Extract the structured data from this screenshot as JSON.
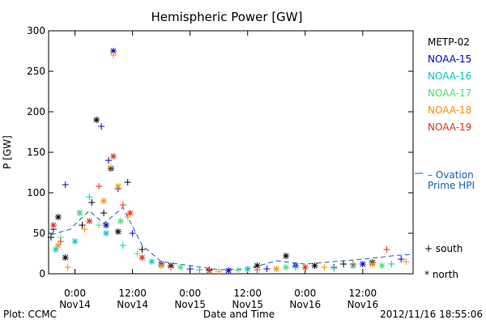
{
  "chart_data": {
    "type": "scatter",
    "title": "Hemispheric Power [GW]",
    "xlabel": "Date and Time",
    "ylabel": "P [GW]",
    "ylim": [
      0,
      300
    ],
    "xlim": [
      "2012-11-13T18:30",
      "2012-11-16T22:30"
    ],
    "yticks": [
      0,
      50,
      100,
      150,
      200,
      250,
      300
    ],
    "xticks": [
      {
        "t": "2012-11-14T00:00",
        "time": "0:00",
        "day": "Nov14"
      },
      {
        "t": "2012-11-14T12:00",
        "time": "12:00",
        "day": "Nov14"
      },
      {
        "t": "2012-11-15T00:00",
        "time": "0:00",
        "day": "Nov15"
      },
      {
        "t": "2012-11-15T12:00",
        "time": "12:00",
        "day": "Nov15"
      },
      {
        "t": "2012-11-16T00:00",
        "time": "0:00",
        "day": "Nov16"
      },
      {
        "t": "2012-11-16T12:00",
        "time": "12:00",
        "day": "Nov16"
      }
    ],
    "grid": false,
    "legend_position": "right",
    "series": [
      {
        "name": "METP-02",
        "color": "#000000",
        "values": [
          [
            "2012-11-13T19:00",
            45,
            "+"
          ],
          [
            "2012-11-13T20:30",
            70,
            "*"
          ],
          [
            "2012-11-13T22:00",
            20,
            "*"
          ],
          [
            "2012-11-14T01:30",
            60,
            "+"
          ],
          [
            "2012-11-14T03:30",
            88,
            "+"
          ],
          [
            "2012-11-14T04:30",
            190,
            "*"
          ],
          [
            "2012-11-14T06:00",
            75,
            "+"
          ],
          [
            "2012-11-14T07:30",
            130,
            "*"
          ],
          [
            "2012-11-14T09:00",
            52,
            "*"
          ],
          [
            "2012-11-14T11:00",
            113,
            "+"
          ],
          [
            "2012-11-14T14:00",
            30,
            "+"
          ],
          [
            "2012-11-14T20:00",
            10,
            "*"
          ],
          [
            "2012-11-15T04:00",
            5,
            "+"
          ],
          [
            "2012-11-15T14:00",
            10,
            "*"
          ],
          [
            "2012-11-15T20:00",
            22,
            "*"
          ],
          [
            "2012-11-16T02:00",
            10,
            "*"
          ],
          [
            "2012-11-16T08:00",
            12,
            "+"
          ],
          [
            "2012-11-16T14:00",
            14,
            "*"
          ]
        ]
      },
      {
        "name": "NOAA-15",
        "color": "#0000cc",
        "values": [
          [
            "2012-11-13T19:30",
            55,
            "+"
          ],
          [
            "2012-11-13T22:00",
            110,
            "+"
          ],
          [
            "2012-11-14T01:00",
            75,
            "*"
          ],
          [
            "2012-11-14T05:30",
            182,
            "+"
          ],
          [
            "2012-11-14T06:30",
            60,
            "*"
          ],
          [
            "2012-11-14T07:00",
            140,
            "+"
          ],
          [
            "2012-11-14T08:00",
            275,
            "*"
          ],
          [
            "2012-11-14T09:00",
            105,
            "+"
          ],
          [
            "2012-11-14T12:00",
            50,
            "+"
          ],
          [
            "2012-11-14T18:00",
            12,
            "*"
          ],
          [
            "2012-11-15T00:00",
            6,
            "+"
          ],
          [
            "2012-11-15T08:00",
            4,
            "*"
          ],
          [
            "2012-11-15T16:00",
            6,
            "+"
          ],
          [
            "2012-11-15T22:00",
            10,
            "*"
          ],
          [
            "2012-11-16T06:00",
            8,
            "+"
          ],
          [
            "2012-11-16T12:00",
            12,
            "*"
          ],
          [
            "2012-11-16T20:00",
            18,
            "+"
          ]
        ]
      },
      {
        "name": "NOAA-16",
        "color": "#00c8c8",
        "values": [
          [
            "2012-11-13T20:00",
            30,
            "*"
          ],
          [
            "2012-11-14T00:00",
            40,
            "*"
          ],
          [
            "2012-11-14T03:00",
            95,
            "+"
          ],
          [
            "2012-11-14T06:30",
            50,
            "*"
          ],
          [
            "2012-11-14T10:00",
            35,
            "+"
          ],
          [
            "2012-11-14T16:00",
            15,
            "*"
          ],
          [
            "2012-11-15T02:00",
            5,
            "+"
          ],
          [
            "2012-11-15T12:00",
            6,
            "*"
          ],
          [
            "2012-11-15T22:00",
            8,
            "+"
          ],
          [
            "2012-11-16T10:00",
            10,
            "*"
          ],
          [
            "2012-11-16T18:00",
            12,
            "+"
          ]
        ]
      },
      {
        "name": "NOAA-17",
        "color": "#44e070",
        "values": [
          [
            "2012-11-13T21:00",
            45,
            "+"
          ],
          [
            "2012-11-14T01:00",
            75,
            "*"
          ],
          [
            "2012-11-14T05:00",
            60,
            "+"
          ],
          [
            "2012-11-14T09:30",
            65,
            "*"
          ],
          [
            "2012-11-14T13:00",
            25,
            "+"
          ],
          [
            "2012-11-14T22:00",
            8,
            "*"
          ],
          [
            "2012-11-15T10:00",
            4,
            "+"
          ],
          [
            "2012-11-15T20:00",
            8,
            "*"
          ],
          [
            "2012-11-16T06:00",
            6,
            "+"
          ],
          [
            "2012-11-16T16:00",
            10,
            "*"
          ]
        ]
      },
      {
        "name": "NOAA-18",
        "color": "#ff8c00",
        "values": [
          [
            "2012-11-13T20:30",
            35,
            "*"
          ],
          [
            "2012-11-13T22:30",
            8,
            "+"
          ],
          [
            "2012-11-14T02:00",
            55,
            "+"
          ],
          [
            "2012-11-14T06:00",
            90,
            "*"
          ],
          [
            "2012-11-14T07:30",
            132,
            "+"
          ],
          [
            "2012-11-14T08:00",
            270,
            "+"
          ],
          [
            "2012-11-14T09:00",
            108,
            "*"
          ],
          [
            "2012-11-14T11:00",
            70,
            "+"
          ],
          [
            "2012-11-14T18:00",
            10,
            "*"
          ],
          [
            "2012-11-15T06:00",
            3,
            "+"
          ],
          [
            "2012-11-15T18:00",
            6,
            "*"
          ],
          [
            "2012-11-16T04:00",
            8,
            "+"
          ],
          [
            "2012-11-16T14:00",
            12,
            "*"
          ],
          [
            "2012-11-16T21:00",
            15,
            "+"
          ]
        ]
      },
      {
        "name": "NOAA-19",
        "color": "#e03010",
        "values": [
          [
            "2012-11-13T19:30",
            60,
            "*"
          ],
          [
            "2012-11-13T21:00",
            40,
            "+"
          ],
          [
            "2012-11-14T03:00",
            65,
            "*"
          ],
          [
            "2012-11-14T05:00",
            108,
            "+"
          ],
          [
            "2012-11-14T08:00",
            145,
            "*"
          ],
          [
            "2012-11-14T10:00",
            85,
            "+"
          ],
          [
            "2012-11-14T11:30",
            75,
            "*"
          ],
          [
            "2012-11-14T14:00",
            20,
            "*"
          ],
          [
            "2012-11-14T20:00",
            8,
            "+"
          ],
          [
            "2012-11-15T04:00",
            4,
            "*"
          ],
          [
            "2012-11-15T14:00",
            5,
            "+"
          ],
          [
            "2012-11-16T00:00",
            8,
            "*"
          ],
          [
            "2012-11-16T10:00",
            12,
            "+"
          ],
          [
            "2012-11-16T17:00",
            30,
            "+"
          ]
        ]
      }
    ],
    "ovation_line": {
      "name": "Ovation Prime HPI",
      "color": "#1060c0",
      "values": [
        [
          "2012-11-13T19:00",
          48
        ],
        [
          "2012-11-13T23:00",
          55
        ],
        [
          "2012-11-14T03:00",
          78
        ],
        [
          "2012-11-14T06:00",
          62
        ],
        [
          "2012-11-14T10:00",
          82
        ],
        [
          "2012-11-14T14:00",
          35
        ],
        [
          "2012-11-14T18:00",
          15
        ],
        [
          "2012-11-15T00:00",
          10
        ],
        [
          "2012-11-15T06:00",
          5
        ],
        [
          "2012-11-15T12:00",
          6
        ],
        [
          "2012-11-15T18:00",
          16
        ],
        [
          "2012-11-16T00:00",
          12
        ],
        [
          "2012-11-16T06:00",
          15
        ],
        [
          "2012-11-16T12:00",
          18
        ],
        [
          "2012-11-16T18:00",
          22
        ],
        [
          "2012-11-16T22:00",
          24
        ]
      ]
    }
  },
  "legend": {
    "ovation_label_1": "– Ovation",
    "ovation_label_2": "Prime HPI",
    "south_label": "+ south",
    "north_label": "* north"
  },
  "footer": {
    "plot_credit": "Plot: CCMC",
    "timestamp": "2012/11/16 18:55:06"
  }
}
